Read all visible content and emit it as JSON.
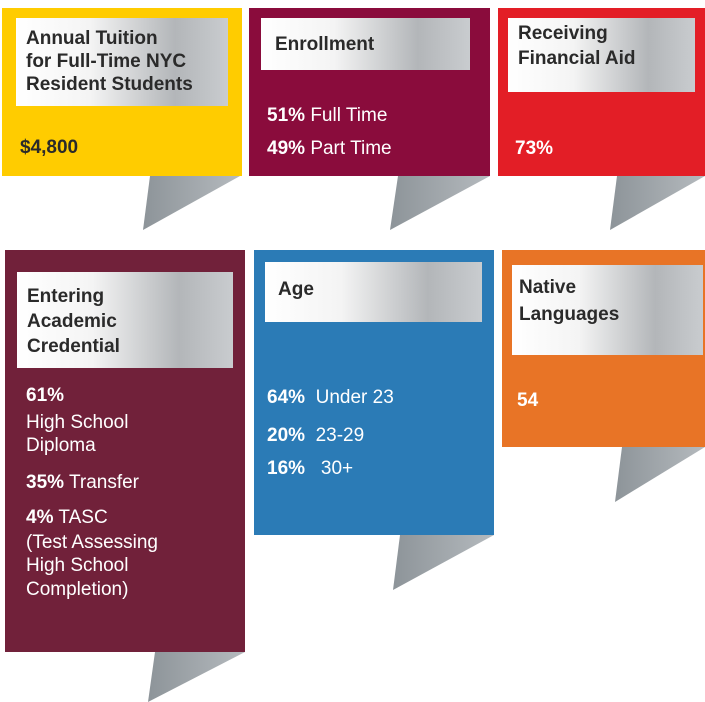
{
  "cards": [
    {
      "title": [
        "Annual Tuition",
        "for Full-Time NYC",
        "Resident Students"
      ],
      "items": [
        {
          "value": "$4,800"
        }
      ]
    },
    {
      "title": [
        "Enrollment"
      ],
      "items": [
        {
          "value": "51%",
          "label": "Full Time"
        },
        {
          "value": "49%",
          "label": "Part Time"
        }
      ]
    },
    {
      "title": [
        "Receiving",
        "Financial Aid"
      ],
      "items": [
        {
          "value": "73%"
        }
      ]
    },
    {
      "title": [
        "Entering",
        "Academic",
        "Credential"
      ],
      "items": [
        {
          "value": "61%",
          "lines": [
            "High School",
            "Diploma"
          ]
        },
        {
          "value": "35%",
          "label": "Transfer"
        },
        {
          "value": "4%",
          "label": "TASC",
          "lines": [
            "(Test Assessing",
            "High School",
            "Completion)"
          ]
        }
      ]
    },
    {
      "title": [
        "Age"
      ],
      "items": [
        {
          "value": "64%",
          "label": "Under 23"
        },
        {
          "value": "20%",
          "label": "23-29"
        },
        {
          "value": "16%",
          "label": "30+"
        }
      ]
    },
    {
      "title": [
        "Native",
        "Languages"
      ],
      "items": [
        {
          "value": "54"
        }
      ]
    }
  ]
}
